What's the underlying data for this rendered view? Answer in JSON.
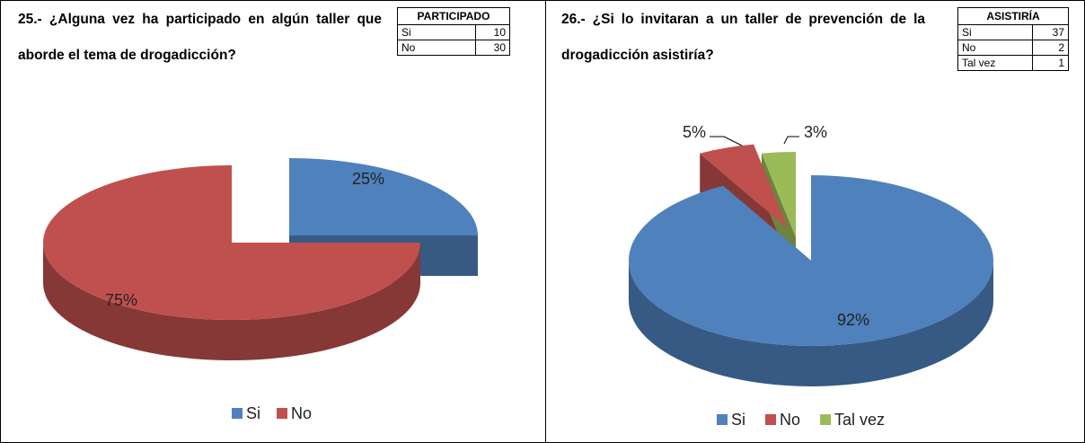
{
  "panels": [
    {
      "question": "25.- ¿Alguna vez ha participado en algún taller que aborde el tema de drogadicción?",
      "table": {
        "header": "PARTICIPADO",
        "rows": [
          [
            "Si",
            10
          ],
          [
            "No",
            30
          ]
        ]
      }
    },
    {
      "question": "26.- ¿Si lo invitaran a un taller de prevención de la drogadicción asistiría?",
      "table": {
        "header": "ASISTIRÍA",
        "rows": [
          [
            "Si",
            37
          ],
          [
            "No",
            2
          ],
          [
            "Tal vez",
            1
          ]
        ]
      }
    }
  ],
  "chart_data": [
    {
      "type": "pie",
      "categories": [
        "Si",
        "No"
      ],
      "values": [
        25,
        75
      ],
      "value_labels": [
        "25%",
        "75%"
      ],
      "colors": [
        "#4f81bd",
        "#c0504d"
      ]
    },
    {
      "type": "pie",
      "categories": [
        "Si",
        "No",
        "Tal vez"
      ],
      "values": [
        92,
        5,
        3
      ],
      "value_labels": [
        "92%",
        "5%",
        "3%"
      ],
      "colors": [
        "#4f81bd",
        "#c0504d",
        "#9bbb59"
      ]
    }
  ]
}
